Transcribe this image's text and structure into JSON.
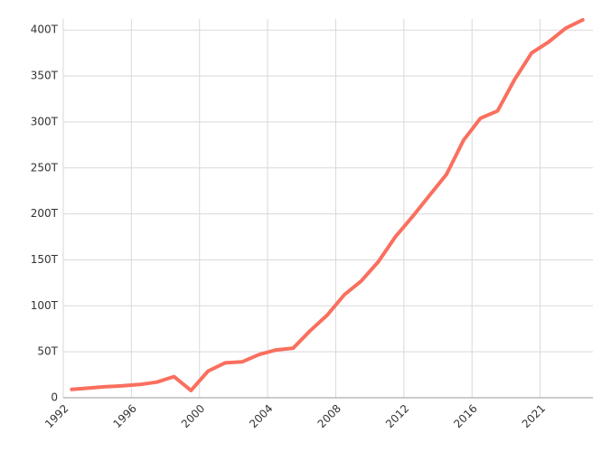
{
  "chart_data": {
    "type": "line",
    "categories": [
      "1992",
      null,
      null,
      null,
      "1996",
      null,
      null,
      null,
      "2000",
      null,
      null,
      null,
      "2004",
      null,
      null,
      null,
      "2008",
      null,
      null,
      null,
      "2012",
      null,
      null,
      null,
      "2016",
      null,
      null,
      null,
      "2021",
      null,
      null
    ],
    "series": [
      {
        "color": "#fa6f5e",
        "values": [
          9,
          10.5,
          12,
          13,
          14.5,
          17,
          23,
          8,
          29,
          38,
          39,
          47,
          52,
          54,
          73,
          90,
          112,
          127,
          148,
          175,
          197,
          220,
          243,
          280,
          304,
          312,
          346,
          375,
          387,
          402,
          411
        ]
      }
    ],
    "ylim": [
      0,
      412
    ],
    "yticks": [
      0,
      {
        "value": 50,
        "label": "50T"
      },
      {
        "value": 100,
        "label": "100T"
      },
      {
        "value": 150,
        "label": "150T"
      },
      {
        "value": 200,
        "label": "200T"
      },
      {
        "value": 250,
        "label": "250T"
      },
      {
        "value": 300,
        "label": "300T"
      },
      {
        "value": 350,
        "label": "350T"
      },
      {
        "value": 400,
        "label": "400T"
      }
    ],
    "grid": true
  }
}
